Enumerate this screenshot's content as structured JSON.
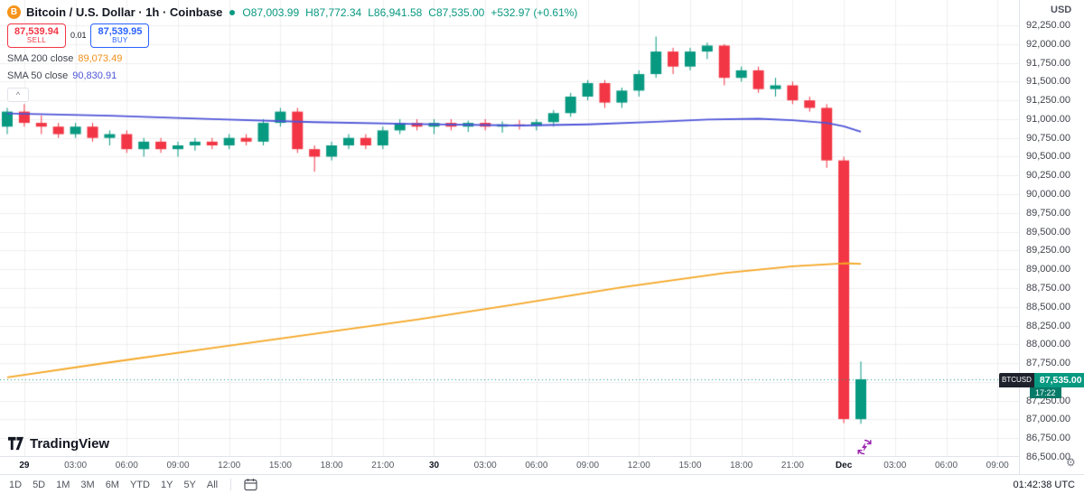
{
  "header": {
    "symbol_title": "Bitcoin / U.S. Dollar · 1h · Coinbase",
    "ohlc": {
      "open_label": "O",
      "open": "87,003.99",
      "high_label": "H",
      "high": "87,772.34",
      "low_label": "L",
      "low": "86,941.58",
      "close_label": "C",
      "close": "87,535.00",
      "change": "+532.97 (+0.61%)"
    },
    "sell": {
      "price": "87,539.94",
      "label": "SELL"
    },
    "spread": "0.01",
    "buy": {
      "price": "87,539.95",
      "label": "BUY"
    },
    "indicators": [
      {
        "name": "SMA 200 close",
        "value": "89,073.49"
      },
      {
        "name": "SMA 50 close",
        "value": "90,830.91"
      }
    ],
    "collapse_label": "^"
  },
  "watermark": {
    "logo_text": "TradingView"
  },
  "price_axis": {
    "currency": "USD",
    "top_price": 92250,
    "bottom_price": 86500,
    "step": 250,
    "labels": [
      "92,250.00",
      "92,000.00",
      "91,750.00",
      "91,500.00",
      "91,250.00",
      "91,000.00",
      "90,750.00",
      "90,500.00",
      "90,250.00",
      "90,000.00",
      "89,750.00",
      "89,500.00",
      "89,250.00",
      "89,000.00",
      "88,750.00",
      "88,500.00",
      "88,250.00",
      "88,000.00",
      "87,750.00",
      "87,500.00",
      "87,250.00",
      "87,000.00",
      "86,750.00",
      "86,500.00"
    ]
  },
  "price_badge": {
    "symbol": "BTCUSD",
    "price": "87,535.00",
    "countdown": "17:22"
  },
  "time_axis": {
    "labels": [
      {
        "t": "29",
        "i": 1,
        "major": true
      },
      {
        "t": "03:00",
        "i": 4
      },
      {
        "t": "06:00",
        "i": 7
      },
      {
        "t": "09:00",
        "i": 10
      },
      {
        "t": "12:00",
        "i": 13
      },
      {
        "t": "15:00",
        "i": 16
      },
      {
        "t": "18:00",
        "i": 19
      },
      {
        "t": "21:00",
        "i": 22
      },
      {
        "t": "30",
        "i": 25,
        "major": true
      },
      {
        "t": "03:00",
        "i": 28
      },
      {
        "t": "06:00",
        "i": 31
      },
      {
        "t": "09:00",
        "i": 34
      },
      {
        "t": "12:00",
        "i": 37
      },
      {
        "t": "15:00",
        "i": 40
      },
      {
        "t": "18:00",
        "i": 43
      },
      {
        "t": "21:00",
        "i": 46
      },
      {
        "t": "Dec",
        "i": 49,
        "major": true
      },
      {
        "t": "03:00",
        "i": 52
      },
      {
        "t": "06:00",
        "i": 55
      },
      {
        "t": "09:00",
        "i": 58
      }
    ]
  },
  "toolbar": {
    "ranges": [
      "1D",
      "5D",
      "1M",
      "3M",
      "6M",
      "YTD",
      "1Y",
      "5Y",
      "All"
    ],
    "clock": "01:42:38 UTC"
  },
  "colors": {
    "up": "#089981",
    "down": "#f23645",
    "sma200": "#f5a623",
    "sma50": "#4f55d8",
    "buy_accent": "#2962ff",
    "sell_accent": "#f23645",
    "bitcoin_orange": "#f7931a",
    "refresh_purple": "#9c27b0",
    "badge_dark": "#1e222d"
  },
  "chart_data": {
    "type": "candlestick",
    "symbol": "BTCUSD",
    "exchange": "Coinbase",
    "interval": "1h",
    "title": "Bitcoin / U.S. Dollar",
    "price_range": [
      86500,
      92250
    ],
    "last_price": 87535.0,
    "up_color": "#089981",
    "down_color": "#f23645",
    "candles": [
      [
        "Nov 28 23:00",
        90900,
        91150,
        90800,
        91100
      ],
      [
        "Nov 29 00:00",
        91100,
        91200,
        90900,
        90950
      ],
      [
        "01:00",
        90950,
        91050,
        90800,
        90900
      ],
      [
        "02:00",
        90900,
        90950,
        90750,
        90800
      ],
      [
        "03:00",
        90800,
        90950,
        90750,
        90900
      ],
      [
        "04:00",
        90900,
        90950,
        90700,
        90750
      ],
      [
        "05:00",
        90750,
        90850,
        90650,
        90800
      ],
      [
        "06:00",
        90800,
        90850,
        90550,
        90600
      ],
      [
        "07:00",
        90600,
        90750,
        90500,
        90700
      ],
      [
        "08:00",
        90700,
        90750,
        90550,
        90600
      ],
      [
        "09:00",
        90600,
        90700,
        90500,
        90650
      ],
      [
        "10:00",
        90650,
        90750,
        90580,
        90700
      ],
      [
        "11:00",
        90700,
        90750,
        90600,
        90650
      ],
      [
        "12:00",
        90650,
        90800,
        90600,
        90750
      ],
      [
        "13:00",
        90750,
        90800,
        90650,
        90700
      ],
      [
        "14:00",
        90700,
        91000,
        90650,
        90950
      ],
      [
        "15:00",
        90950,
        91150,
        90900,
        91100
      ],
      [
        "16:00",
        91100,
        91150,
        90550,
        90600
      ],
      [
        "17:00",
        90600,
        90650,
        90300,
        90500
      ],
      [
        "18:00",
        90500,
        90700,
        90450,
        90650
      ],
      [
        "19:00",
        90650,
        90800,
        90600,
        90750
      ],
      [
        "20:00",
        90750,
        90800,
        90600,
        90650
      ],
      [
        "21:00",
        90650,
        90900,
        90600,
        90850
      ],
      [
        "22:00",
        90850,
        91000,
        90800,
        90950
      ],
      [
        "23:00",
        90950,
        91000,
        90850,
        90900
      ],
      [
        "Nov 30 00:00",
        90900,
        91000,
        90800,
        90950
      ],
      [
        "01:00",
        90950,
        91000,
        90850,
        90900
      ],
      [
        "02:00",
        90900,
        90980,
        90830,
        90950
      ],
      [
        "03:00",
        90950,
        91000,
        90850,
        90900
      ],
      [
        "04:00",
        90900,
        90970,
        90820,
        90930
      ],
      [
        "05:00",
        90930,
        90990,
        90860,
        90910
      ],
      [
        "06:00",
        90910,
        91000,
        90850,
        90960
      ],
      [
        "07:00",
        90960,
        91120,
        90900,
        91080
      ],
      [
        "08:00",
        91080,
        91350,
        91030,
        91300
      ],
      [
        "09:00",
        91300,
        91520,
        91250,
        91480
      ],
      [
        "10:00",
        91480,
        91520,
        91150,
        91220
      ],
      [
        "11:00",
        91220,
        91420,
        91150,
        91380
      ],
      [
        "12:00",
        91380,
        91650,
        91300,
        91600
      ],
      [
        "13:00",
        91600,
        92100,
        91550,
        91900
      ],
      [
        "14:00",
        91900,
        91950,
        91600,
        91700
      ],
      [
        "15:00",
        91700,
        91950,
        91650,
        91900
      ],
      [
        "16:00",
        91900,
        92020,
        91800,
        91980
      ],
      [
        "17:00",
        91980,
        92000,
        91450,
        91550
      ],
      [
        "18:00",
        91550,
        91700,
        91500,
        91650
      ],
      [
        "19:00",
        91650,
        91700,
        91350,
        91400
      ],
      [
        "20:00",
        91400,
        91550,
        91300,
        91450
      ],
      [
        "21:00",
        91450,
        91500,
        91200,
        91250
      ],
      [
        "22:00",
        91250,
        91300,
        91100,
        91150
      ],
      [
        "23:00",
        91150,
        91200,
        90350,
        90450
      ],
      [
        "Dec 1 00:00",
        90450,
        90500,
        86950,
        87005
      ],
      [
        "01:00",
        87003.99,
        87772.34,
        86941.58,
        87535.0
      ]
    ],
    "overlays": [
      {
        "name": "SMA 200",
        "color": "#f5a623",
        "points": [
          [
            0,
            87560
          ],
          [
            6,
            87760
          ],
          [
            12,
            87950
          ],
          [
            18,
            88140
          ],
          [
            24,
            88330
          ],
          [
            30,
            88540
          ],
          [
            36,
            88760
          ],
          [
            42,
            88950
          ],
          [
            46,
            89040
          ],
          [
            49,
            89080
          ],
          [
            50,
            89073
          ]
        ]
      },
      {
        "name": "SMA 50",
        "color": "#4f55d8",
        "points": [
          [
            0,
            91075
          ],
          [
            6,
            91045
          ],
          [
            12,
            91000
          ],
          [
            18,
            90960
          ],
          [
            24,
            90935
          ],
          [
            30,
            90915
          ],
          [
            34,
            90930
          ],
          [
            38,
            90965
          ],
          [
            41,
            90995
          ],
          [
            44,
            91005
          ],
          [
            46,
            90985
          ],
          [
            48,
            90950
          ],
          [
            49,
            90905
          ],
          [
            50,
            90831
          ]
        ]
      }
    ]
  }
}
